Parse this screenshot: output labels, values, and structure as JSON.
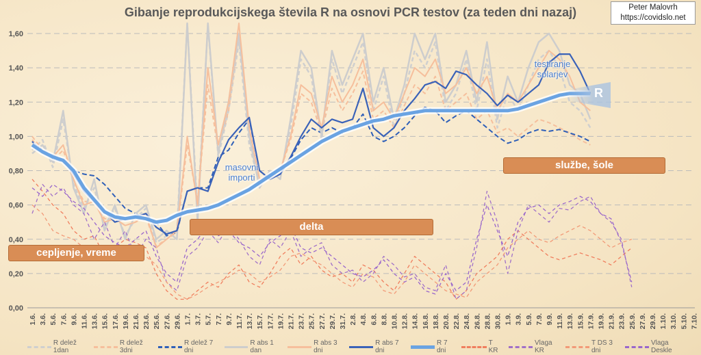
{
  "title": "Gibanje reprodukcijskega števila R na osnovi PCR testov (za teden dni nazaj)",
  "credit": {
    "name": "Peter Malovrh",
    "url": "https://covidslo.net"
  },
  "annotations": {
    "vaccination": "cepljenje, vreme",
    "delta": "delta",
    "services": "službe, šole",
    "imports": "masovni importi",
    "solar": "testiranje solarjev",
    "r_label": "R"
  },
  "chart_data": {
    "type": "line",
    "title": "Gibanje reprodukcijskega števila R na osnovi PCR testov (za teden dni nazaj)",
    "ylim": [
      0,
      1.6
    ],
    "yticks": [
      "0,00",
      "0,20",
      "0,40",
      "0,60",
      "0,80",
      "1,00",
      "1,20",
      "1,40",
      "1,60"
    ],
    "xlabels": [
      "1.6.",
      "3.6.",
      "5.6.",
      "7.6.",
      "9.6.",
      "11.6.",
      "13.6.",
      "15.6.",
      "17.6.",
      "19.6.",
      "21.6.",
      "23.6.",
      "25.6.",
      "27.6.",
      "29.6.",
      "1.7.",
      "3.7.",
      "5.7.",
      "7.7.",
      "9.7.",
      "11.7.",
      "13.7.",
      "15.7.",
      "17.7.",
      "19.7.",
      "21.7.",
      "23.7.",
      "25.7.",
      "27.7.",
      "29.7.",
      "31.7.",
      "2.8.",
      "4.8.",
      "6.8.",
      "8.8.",
      "10.8.",
      "12.8.",
      "14.8.",
      "16.8.",
      "18.8.",
      "20.8.",
      "22.8.",
      "24.8.",
      "26.8.",
      "28.8.",
      "30.8.",
      "1.9.",
      "3.9.",
      "5.9.",
      "7.9.",
      "9.9.",
      "11.9.",
      "13.9.",
      "15.9.",
      "17.9.",
      "19.9.",
      "21.9.",
      "23.9.",
      "25.9.",
      "27.9.",
      "29.9.",
      "1.10.",
      "3.10.",
      "5.10.",
      "7.10."
    ],
    "x_step_note": "values sampled every 2 days starting 1.6.",
    "grid": true,
    "legend": "bottom",
    "series": [
      {
        "name": "R delež 1dan",
        "color": "#cfcfcf",
        "dash": "6 4",
        "width": 2.5,
        "values": [
          0.92,
          0.98,
          0.82,
          1.1,
          0.72,
          0.58,
          0.7,
          0.48,
          0.58,
          0.42,
          0.52,
          0.58,
          0.38,
          0.42,
          0.44,
          1.7,
          0.55,
          1.65,
          0.88,
          1.15,
          1.55,
          0.95,
          0.72,
          0.78,
          0.78,
          1.05,
          1.45,
          1.35,
          0.98,
          1.45,
          1.25,
          1.4,
          1.55,
          1.15,
          1.35,
          1.05,
          1.25,
          1.5,
          1.4,
          1.55,
          1.15,
          1.25,
          1.45,
          1.15,
          1.45,
          1.05,
          1.25,
          1.15,
          1.3,
          1.45,
          1.5,
          1.4,
          1.2,
          1.15,
          1.05
        ]
      },
      {
        "name": "R delež 3dni",
        "color": "#f6bf9c",
        "dash": "6 4",
        "width": 2,
        "values": [
          1.0,
          0.92,
          0.86,
          0.92,
          0.74,
          0.62,
          0.62,
          0.52,
          0.52,
          0.48,
          0.5,
          0.53,
          0.36,
          0.4,
          0.44,
          0.95,
          0.62,
          1.3,
          0.92,
          1.15,
          1.6,
          1.02,
          0.75,
          0.78,
          0.8,
          0.98,
          1.25,
          1.2,
          1.02,
          1.28,
          1.15,
          1.25,
          1.38,
          1.1,
          1.15,
          1.05,
          1.18,
          1.3,
          1.25,
          1.35,
          1.15,
          1.2,
          1.25,
          1.1,
          1.15,
          1.02,
          1.05,
          1.0,
          1.05,
          1.1,
          1.08,
          1.05,
          1.02,
          0.98,
          0.95
        ]
      },
      {
        "name": "R delež 7 dni",
        "color": "#2e5fb8",
        "dash": "7 4",
        "width": 2,
        "values": [
          0.97,
          0.92,
          0.87,
          0.85,
          0.8,
          0.78,
          0.77,
          0.72,
          0.65,
          0.58,
          0.55,
          0.52,
          0.5,
          0.42,
          0.44,
          0.68,
          0.7,
          0.7,
          0.88,
          0.92,
          1.02,
          1.1,
          0.8,
          0.75,
          0.78,
          0.87,
          0.98,
          1.05,
          1.02,
          1.05,
          1.02,
          1.05,
          1.13,
          1.0,
          0.97,
          1.0,
          1.05,
          1.12,
          1.17,
          1.15,
          1.08,
          1.12,
          1.15,
          1.1,
          1.05,
          1.0,
          0.96,
          0.98,
          1.02,
          1.04,
          1.03,
          1.04,
          1.02,
          1.0,
          0.97
        ]
      },
      {
        "name": "R abs 1 dan",
        "color": "#cdcdcd",
        "dash": "",
        "width": 2.5,
        "values": [
          0.9,
          0.95,
          0.85,
          1.15,
          0.7,
          0.55,
          0.75,
          0.45,
          0.6,
          0.4,
          0.55,
          0.6,
          0.4,
          0.45,
          0.4,
          1.8,
          0.5,
          1.8,
          0.9,
          1.2,
          1.6,
          1.0,
          0.7,
          0.8,
          0.75,
          1.1,
          1.5,
          1.4,
          1.0,
          1.5,
          1.3,
          1.45,
          1.6,
          1.2,
          1.4,
          1.1,
          1.3,
          1.6,
          1.45,
          1.6,
          1.2,
          1.3,
          1.5,
          1.2,
          1.55,
          1.1,
          1.35,
          1.2,
          1.4,
          1.55,
          1.6,
          1.5,
          1.3,
          1.25,
          1.1
        ]
      },
      {
        "name": "R abs 3 dni",
        "color": "#f6bf9c",
        "dash": "",
        "width": 2,
        "values": [
          0.98,
          0.9,
          0.88,
          0.95,
          0.75,
          0.6,
          0.62,
          0.5,
          0.52,
          0.48,
          0.5,
          0.55,
          0.35,
          0.4,
          0.45,
          1.0,
          0.6,
          1.4,
          0.95,
          1.2,
          1.7,
          1.05,
          0.75,
          0.78,
          0.8,
          1.0,
          1.3,
          1.25,
          1.05,
          1.35,
          1.2,
          1.3,
          1.45,
          1.15,
          1.2,
          1.1,
          1.25,
          1.4,
          1.35,
          1.45,
          1.25,
          1.3,
          1.4,
          1.25,
          1.35,
          1.15,
          1.25,
          1.2,
          1.3,
          1.4,
          1.5,
          1.45,
          1.35,
          1.2,
          1.15
        ]
      },
      {
        "name": "R abs 7 dni",
        "color": "#3a62b8",
        "dash": "",
        "width": 2.2,
        "values": [
          0.97,
          0.91,
          0.89,
          0.86,
          0.78,
          0.68,
          0.62,
          0.56,
          0.5,
          0.52,
          0.53,
          0.55,
          0.47,
          0.43,
          0.45,
          0.68,
          0.7,
          0.68,
          0.85,
          0.98,
          1.05,
          1.11,
          0.8,
          0.75,
          0.78,
          0.88,
          1.0,
          1.1,
          1.05,
          1.1,
          1.08,
          1.1,
          1.28,
          1.05,
          1.0,
          1.05,
          1.15,
          1.22,
          1.3,
          1.32,
          1.28,
          1.38,
          1.36,
          1.3,
          1.25,
          1.18,
          1.24,
          1.2,
          1.25,
          1.3,
          1.43,
          1.48,
          1.48,
          1.38,
          1.25
        ]
      },
      {
        "name": "R 7 dni",
        "color": "#6aa3e2",
        "dash": "",
        "width": 5,
        "glow": true,
        "values": [
          0.95,
          0.91,
          0.88,
          0.86,
          0.8,
          0.7,
          0.63,
          0.56,
          0.53,
          0.52,
          0.53,
          0.52,
          0.5,
          0.51,
          0.54,
          0.56,
          0.57,
          0.58,
          0.6,
          0.63,
          0.66,
          0.69,
          0.73,
          0.77,
          0.81,
          0.85,
          0.89,
          0.93,
          0.97,
          1.0,
          1.03,
          1.05,
          1.07,
          1.09,
          1.1,
          1.12,
          1.13,
          1.14,
          1.15,
          1.15,
          1.15,
          1.15,
          1.15,
          1.15,
          1.15,
          1.15,
          1.15,
          1.16,
          1.18,
          1.2,
          1.22,
          1.24,
          1.25,
          1.25,
          1.25
        ]
      },
      {
        "name": "T KR",
        "color": "#f07e5e",
        "dash": "5 4",
        "width": 1.3,
        "values": [
          0.75,
          0.68,
          0.6,
          0.55,
          0.45,
          0.4,
          0.42,
          0.3,
          0.35,
          0.4,
          0.38,
          0.35,
          0.2,
          0.1,
          0.05,
          0.05,
          0.1,
          0.15,
          0.12,
          0.2,
          0.25,
          0.15,
          0.12,
          0.2,
          0.3,
          0.35,
          0.25,
          0.3,
          0.22,
          0.18,
          0.2,
          0.15,
          0.25,
          0.22,
          0.15,
          0.1,
          0.2,
          0.3,
          0.25,
          0.2,
          0.15,
          0.05,
          0.1,
          0.2,
          0.25,
          0.3,
          0.4,
          0.45,
          0.4,
          0.35,
          0.3,
          0.28,
          0.3,
          0.32,
          0.3,
          0.28,
          0.25,
          0.3,
          0.35
        ]
      },
      {
        "name": "Vlaga KR",
        "color": "#a070c8",
        "dash": "5 4",
        "width": 1.3,
        "values": [
          0.55,
          0.72,
          0.65,
          0.7,
          0.6,
          0.55,
          0.4,
          0.5,
          0.35,
          0.45,
          0.3,
          0.4,
          0.35,
          0.15,
          0.1,
          0.3,
          0.35,
          0.45,
          0.38,
          0.48,
          0.4,
          0.3,
          0.25,
          0.4,
          0.35,
          0.45,
          0.3,
          0.35,
          0.38,
          0.25,
          0.2,
          0.22,
          0.15,
          0.2,
          0.3,
          0.25,
          0.18,
          0.2,
          0.12,
          0.1,
          0.25,
          0.05,
          0.1,
          0.35,
          0.68,
          0.5,
          0.2,
          0.45,
          0.6,
          0.55,
          0.5,
          0.58,
          0.57,
          0.62,
          0.65,
          0.55,
          0.5,
          0.4,
          0.12
        ]
      },
      {
        "name": "T DS 3 dni",
        "color": "#f29a78",
        "dash": "5 4",
        "width": 1.3,
        "values": [
          0.6,
          0.55,
          0.45,
          0.42,
          0.4,
          0.35,
          0.3,
          0.28,
          0.3,
          0.35,
          0.32,
          0.3,
          0.25,
          0.15,
          0.08,
          0.05,
          0.08,
          0.12,
          0.15,
          0.18,
          0.22,
          0.2,
          0.15,
          0.18,
          0.22,
          0.3,
          0.32,
          0.28,
          0.25,
          0.2,
          0.15,
          0.12,
          0.2,
          0.18,
          0.1,
          0.08,
          0.15,
          0.25,
          0.2,
          0.15,
          0.1,
          0.08,
          0.06,
          0.15,
          0.2,
          0.25,
          0.35,
          0.4,
          0.45,
          0.4,
          0.38,
          0.42,
          0.45,
          0.48,
          0.45,
          0.4,
          0.35,
          0.38,
          0.4
        ]
      },
      {
        "name": "Vlaga Deskle",
        "color": "#9966cc",
        "dash": "5 4",
        "width": 1.3,
        "values": [
          0.7,
          0.65,
          0.72,
          0.68,
          0.62,
          0.58,
          0.5,
          0.42,
          0.38,
          0.35,
          0.4,
          0.45,
          0.3,
          0.2,
          0.15,
          0.35,
          0.4,
          0.48,
          0.42,
          0.45,
          0.38,
          0.35,
          0.3,
          0.38,
          0.42,
          0.48,
          0.35,
          0.32,
          0.35,
          0.3,
          0.25,
          0.2,
          0.18,
          0.22,
          0.28,
          0.2,
          0.15,
          0.18,
          0.1,
          0.08,
          0.2,
          0.1,
          0.15,
          0.4,
          0.6,
          0.45,
          0.3,
          0.5,
          0.58,
          0.6,
          0.55,
          0.6,
          0.62,
          0.65,
          0.62,
          0.55,
          0.52,
          0.38,
          0.15
        ]
      }
    ]
  }
}
